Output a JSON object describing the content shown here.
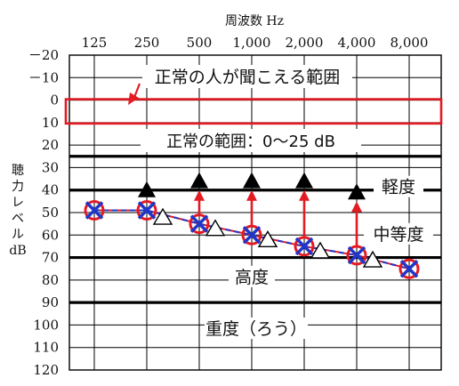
{
  "chart_data": {
    "type": "line",
    "xlabel": "周波数 Hz",
    "ylabel": [
      "聴",
      "力",
      "レ",
      "ベ",
      "ル",
      "dB"
    ],
    "x_categories": [
      "125",
      "250",
      "500",
      "1,000",
      "2,000",
      "4,000",
      "8,000"
    ],
    "y_ticks": [
      -20,
      -10,
      0,
      10,
      20,
      30,
      40,
      50,
      60,
      70,
      80,
      90,
      100,
      110,
      120
    ],
    "y_tick_labels": [
      "－20",
      "－10",
      "0",
      "10",
      "20",
      "30",
      "40",
      "50",
      "60",
      "70",
      "80",
      "90",
      "100",
      "110",
      "120"
    ],
    "ylim": [
      -20,
      120
    ],
    "y_inverted": true,
    "grid": true,
    "zone_lines": [
      25,
      40,
      70,
      90
    ],
    "normal_range": {
      "from": 0,
      "to": 10,
      "label": "正常の人が聞こえる範囲"
    },
    "normal_range_note": "正常の範囲：0～25 dB",
    "zone_labels": [
      {
        "text": "軽度",
        "level": 40
      },
      {
        "text": "中等度",
        "level": 61
      },
      {
        "text": "高度",
        "level": 80
      },
      {
        "text": "重度（ろう）",
        "level": 103
      }
    ],
    "series": [
      {
        "marker": "circle-x",
        "values": [
          49,
          49,
          55,
          60,
          65,
          69,
          75
        ]
      },
      {
        "marker": "triangle-open",
        "values": [
          null,
          52,
          57,
          62,
          67,
          71,
          null
        ]
      },
      {
        "marker": "triangle-filled",
        "values": [
          null,
          40,
          36,
          36,
          36,
          41,
          null
        ]
      }
    ],
    "arrows": [
      {
        "x": "500",
        "from": 55,
        "to": 40
      },
      {
        "x": "1,000",
        "from": 60,
        "to": 40
      },
      {
        "x": "2,000",
        "from": 65,
        "to": 40
      },
      {
        "x": "4,000",
        "from": 69,
        "to": 45
      }
    ]
  },
  "colors": {
    "red": "#e31b23",
    "blue": "#1f36c9",
    "grid": "#000000",
    "text": "#111111"
  }
}
